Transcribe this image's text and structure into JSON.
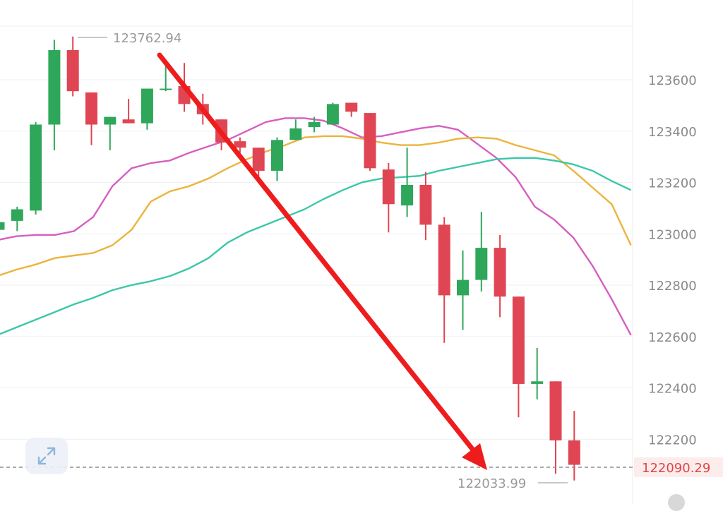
{
  "chart_data": {
    "type": "candlestick",
    "title": "",
    "xlabel": "",
    "ylabel": "",
    "ylim": [
      121900,
      123950
    ],
    "y_ticks": [
      123600,
      123400,
      123200,
      123000,
      122800,
      122600,
      122400,
      122200
    ],
    "y_tick_labels": [
      "123600",
      "123400",
      "123200",
      "123000",
      "122800",
      "122600",
      "122400",
      "122200"
    ],
    "grid": true,
    "current_price": "122090.29",
    "high_annotation": "123762.94",
    "low_annotation": "122033.99",
    "colors": {
      "up": "#2ea75a",
      "down": "#e04553",
      "ma_fast": "#d65fc0",
      "ma_mid": "#ecb43c",
      "ma_slow": "#3cc7a9",
      "arrow": "#ee1c1c"
    },
    "candles": [
      {
        "o": 123010,
        "h": 123050,
        "l": 123000,
        "c": 123040
      },
      {
        "o": 123045,
        "h": 123100,
        "l": 123005,
        "c": 123090
      },
      {
        "o": 123085,
        "h": 123430,
        "l": 123070,
        "c": 123420
      },
      {
        "o": 123420,
        "h": 123750,
        "l": 123320,
        "c": 123710
      },
      {
        "o": 123710,
        "h": 123763,
        "l": 123530,
        "c": 123550
      },
      {
        "o": 123545,
        "h": 123545,
        "l": 123340,
        "c": 123420
      },
      {
        "o": 123420,
        "h": 123450,
        "l": 123320,
        "c": 123450
      },
      {
        "o": 123440,
        "h": 123520,
        "l": 123430,
        "c": 123425
      },
      {
        "o": 123425,
        "h": 123560,
        "l": 123400,
        "c": 123560
      },
      {
        "o": 123555,
        "h": 123670,
        "l": 123550,
        "c": 123560
      },
      {
        "o": 123570,
        "h": 123660,
        "l": 123470,
        "c": 123500
      },
      {
        "o": 123500,
        "h": 123540,
        "l": 123420,
        "c": 123460
      },
      {
        "o": 123440,
        "h": 123440,
        "l": 123320,
        "c": 123350
      },
      {
        "o": 123355,
        "h": 123370,
        "l": 123310,
        "c": 123330
      },
      {
        "o": 123330,
        "h": 123330,
        "l": 123210,
        "c": 123240
      },
      {
        "o": 123240,
        "h": 123370,
        "l": 123200,
        "c": 123360
      },
      {
        "o": 123360,
        "h": 123440,
        "l": 123360,
        "c": 123405
      },
      {
        "o": 123410,
        "h": 123450,
        "l": 123390,
        "c": 123430
      },
      {
        "o": 123420,
        "h": 123505,
        "l": 123420,
        "c": 123500
      },
      {
        "o": 123505,
        "h": 123505,
        "l": 123450,
        "c": 123470
      },
      {
        "o": 123465,
        "h": 123465,
        "l": 123240,
        "c": 123250
      },
      {
        "o": 123245,
        "h": 123270,
        "l": 123000,
        "c": 123110
      },
      {
        "o": 123105,
        "h": 123330,
        "l": 123060,
        "c": 123185
      },
      {
        "o": 123185,
        "h": 123235,
        "l": 122970,
        "c": 123030
      },
      {
        "o": 123030,
        "h": 123060,
        "l": 122570,
        "c": 122755
      },
      {
        "o": 122755,
        "h": 122930,
        "l": 122620,
        "c": 122815
      },
      {
        "o": 122815,
        "h": 123080,
        "l": 122770,
        "c": 122940
      },
      {
        "o": 122940,
        "h": 122990,
        "l": 122670,
        "c": 122750
      },
      {
        "o": 122750,
        "h": 122750,
        "l": 122280,
        "c": 122410
      },
      {
        "o": 122410,
        "h": 122550,
        "l": 122350,
        "c": 122420
      },
      {
        "o": 122420,
        "h": 122420,
        "l": 122060,
        "c": 122190
      },
      {
        "o": 122190,
        "h": 122305,
        "l": 122034,
        "c": 122095
      }
    ],
    "ma_series": [
      {
        "values": [
          122970,
          122985,
          122990,
          122990,
          123005,
          123060,
          123180,
          123250,
          123270,
          123280,
          123310,
          123335,
          123360,
          123395,
          123430,
          123445,
          123445,
          123435,
          123405,
          123370,
          123375,
          123390,
          123405,
          123415,
          123400,
          123345,
          123290,
          123215,
          123100,
          123050,
          122980,
          122870,
          122740,
          122600
        ]
      },
      {
        "values": [
          122830,
          122855,
          122875,
          122900,
          122910,
          122920,
          122950,
          123010,
          123120,
          123160,
          123180,
          123210,
          123250,
          123285,
          123315,
          123340,
          123370,
          123375,
          123375,
          123365,
          123350,
          123340,
          123340,
          123350,
          123365,
          123370,
          123365,
          123340,
          123320,
          123300,
          123240,
          123175,
          123110,
          122950
        ]
      },
      {
        "values": [
          122600,
          122630,
          122660,
          122690,
          122720,
          122745,
          122775,
          122795,
          122810,
          122830,
          122860,
          122900,
          122960,
          123000,
          123030,
          123060,
          123090,
          123130,
          123165,
          123195,
          123210,
          123215,
          123220,
          123240,
          123255,
          123270,
          123285,
          123290,
          123290,
          123280,
          123265,
          123240,
          123200,
          123165
        ]
      }
    ]
  }
}
